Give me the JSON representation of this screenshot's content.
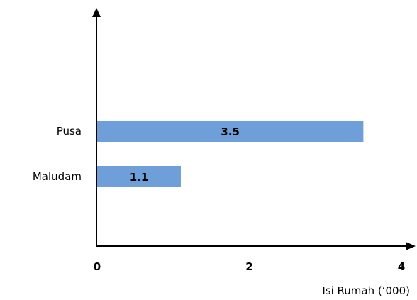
{
  "chart_data": {
    "type": "bar",
    "orientation": "horizontal",
    "categories": [
      "Pusa",
      "Maludam"
    ],
    "values": [
      3.5,
      1.1
    ],
    "value_labels": [
      "3.5",
      "1.1"
    ],
    "xlabel": "Isi Rumah (‘000)",
    "ylabel": "",
    "title": "",
    "xlim": [
      0,
      4
    ],
    "xticks": [
      "0",
      "2",
      "4"
    ],
    "grid": false,
    "bar_color": "#6f9fd8"
  }
}
